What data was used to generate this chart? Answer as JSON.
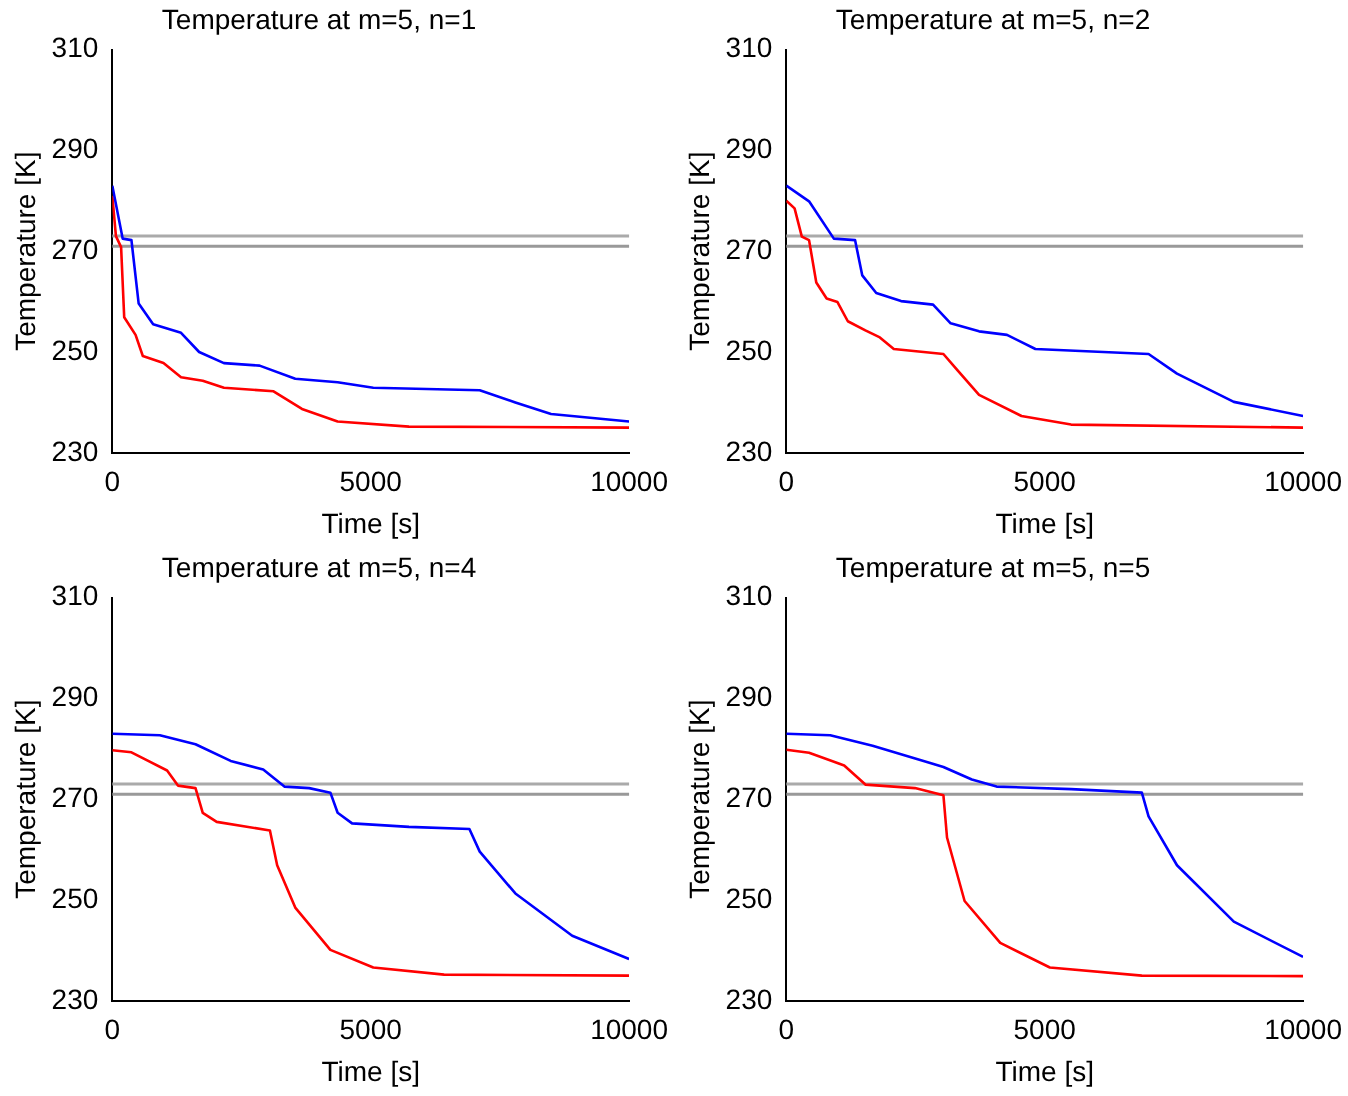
{
  "chart_data": [
    {
      "type": "line",
      "title": "Temperature at m=5, n=1",
      "xlabel": "Time [s]",
      "ylabel": "Temperature [K]",
      "xlim": [
        0,
        10000
      ],
      "xticks": [
        0,
        5000,
        10000
      ],
      "ylim": [
        230,
        310
      ],
      "yticks": [
        230,
        250,
        270,
        290,
        310
      ],
      "ref_lines": [
        {
          "axis": "y",
          "value": 273,
          "color": "#aaaaaa"
        },
        {
          "axis": "y",
          "value": 271,
          "color": "#999999"
        }
      ],
      "series": [
        {
          "color": "#0000ff",
          "x": [
            0,
            200,
            370,
            510,
            790,
            1330,
            1680,
            2160,
            2850,
            3540,
            4360,
            5050,
            7110,
            7800,
            8490,
            10000
          ],
          "values": [
            283,
            272.5,
            272.2,
            259.6,
            255.5,
            253.8,
            250,
            247.8,
            247.3,
            244.7,
            244,
            242.9,
            242.4,
            240,
            237.7,
            236.2
          ]
        },
        {
          "color": "#ff0000",
          "x": [
            0,
            70,
            170,
            230,
            450,
            590,
            990,
            1330,
            1750,
            2160,
            3120,
            3670,
            4360,
            5740,
            10000
          ],
          "values": [
            281,
            273,
            270.8,
            256.9,
            253.4,
            249.2,
            247.8,
            245,
            244.3,
            242.9,
            242.2,
            238.7,
            236.2,
            235.2,
            235
          ]
        }
      ]
    },
    {
      "type": "line",
      "title": "Temperature at m=5, n=2",
      "xlabel": "Time [s]",
      "ylabel": "Temperature [K]",
      "xlim": [
        0,
        10000
      ],
      "xticks": [
        0,
        5000,
        10000
      ],
      "ylim": [
        230,
        310
      ],
      "yticks": [
        230,
        250,
        270,
        290,
        310
      ],
      "ref_lines": [
        {
          "axis": "y",
          "value": 273,
          "color": "#aaaaaa"
        },
        {
          "axis": "y",
          "value": 271,
          "color": "#999999"
        }
      ],
      "series": [
        {
          "color": "#0000ff",
          "x": [
            0,
            440,
            920,
            1330,
            1470,
            1740,
            2220,
            2840,
            3180,
            3730,
            4270,
            4820,
            7010,
            7560,
            8660,
            10000
          ],
          "values": [
            283,
            279.9,
            272.5,
            272.2,
            265.2,
            261.7,
            260.1,
            259.4,
            255.7,
            254.1,
            253.4,
            250.6,
            249.6,
            245.7,
            240.1,
            237.3
          ]
        },
        {
          "color": "#ff0000",
          "x": [
            0,
            160,
            300,
            440,
            580,
            780,
            990,
            1190,
            1530,
            1810,
            2080,
            3040,
            3310,
            3730,
            4550,
            5510,
            10000
          ],
          "values": [
            280,
            278.5,
            272.9,
            272.2,
            263.8,
            260.6,
            259.9,
            256.1,
            254.3,
            252.9,
            250.6,
            249.6,
            246.4,
            241.5,
            237.3,
            235.6,
            235
          ]
        }
      ]
    },
    {
      "type": "line",
      "title": "Temperature at m=5, n=4",
      "xlabel": "Time [s]",
      "ylabel": "Temperature [K]",
      "xlim": [
        0,
        10000
      ],
      "xticks": [
        0,
        5000,
        10000
      ],
      "ylim": [
        230,
        310
      ],
      "yticks": [
        230,
        250,
        270,
        290,
        310
      ],
      "ref_lines": [
        {
          "axis": "y",
          "value": 273,
          "color": "#aaaaaa"
        },
        {
          "axis": "y",
          "value": 271,
          "color": "#999999"
        }
      ],
      "series": [
        {
          "color": "#0000ff",
          "x": [
            0,
            920,
            1610,
            2290,
            2920,
            3330,
            3810,
            4220,
            4360,
            4640,
            5740,
            6910,
            7110,
            7800,
            8900,
            10000
          ],
          "values": [
            283,
            282.7,
            280.9,
            277.6,
            275.9,
            272.5,
            272.2,
            271.3,
            267.3,
            265.2,
            264.5,
            264.1,
            259.6,
            251.3,
            242.9,
            238.3
          ]
        },
        {
          "color": "#ff0000",
          "x": [
            0,
            370,
            1060,
            1270,
            1610,
            1750,
            2020,
            3050,
            3190,
            3540,
            4220,
            5050,
            6420,
            10000
          ],
          "values": [
            279.7,
            279.3,
            275.7,
            272.7,
            272.2,
            267.3,
            265.5,
            263.8,
            256.9,
            248.5,
            240.1,
            236.6,
            235.2,
            235
          ]
        }
      ]
    },
    {
      "type": "line",
      "title": "Temperature at m=5, n=5",
      "xlabel": "Time [s]",
      "ylabel": "Temperature [K]",
      "xlim": [
        0,
        10000
      ],
      "xticks": [
        0,
        5000,
        10000
      ],
      "ylim": [
        230,
        310
      ],
      "yticks": [
        230,
        250,
        270,
        290,
        310
      ],
      "ref_lines": [
        {
          "axis": "y",
          "value": 273,
          "color": "#aaaaaa"
        },
        {
          "axis": "y",
          "value": 271,
          "color": "#999999"
        }
      ],
      "series": [
        {
          "color": "#0000ff",
          "x": [
            0,
            850,
            1670,
            3040,
            3590,
            4070,
            5510,
            6880,
            7010,
            7560,
            8660,
            10000
          ],
          "values": [
            283,
            282.7,
            280.6,
            276.4,
            273.9,
            272.5,
            272,
            271.3,
            266.6,
            256.9,
            245.7,
            238.7
          ]
        },
        {
          "color": "#ff0000",
          "x": [
            0,
            440,
            1120,
            1530,
            2490,
            3040,
            3110,
            3450,
            4140,
            5100,
            6880,
            10000
          ],
          "values": [
            279.8,
            279.2,
            276.7,
            272.9,
            272.2,
            270.8,
            262.4,
            249.8,
            241.5,
            236.6,
            235,
            234.9
          ]
        }
      ]
    }
  ]
}
